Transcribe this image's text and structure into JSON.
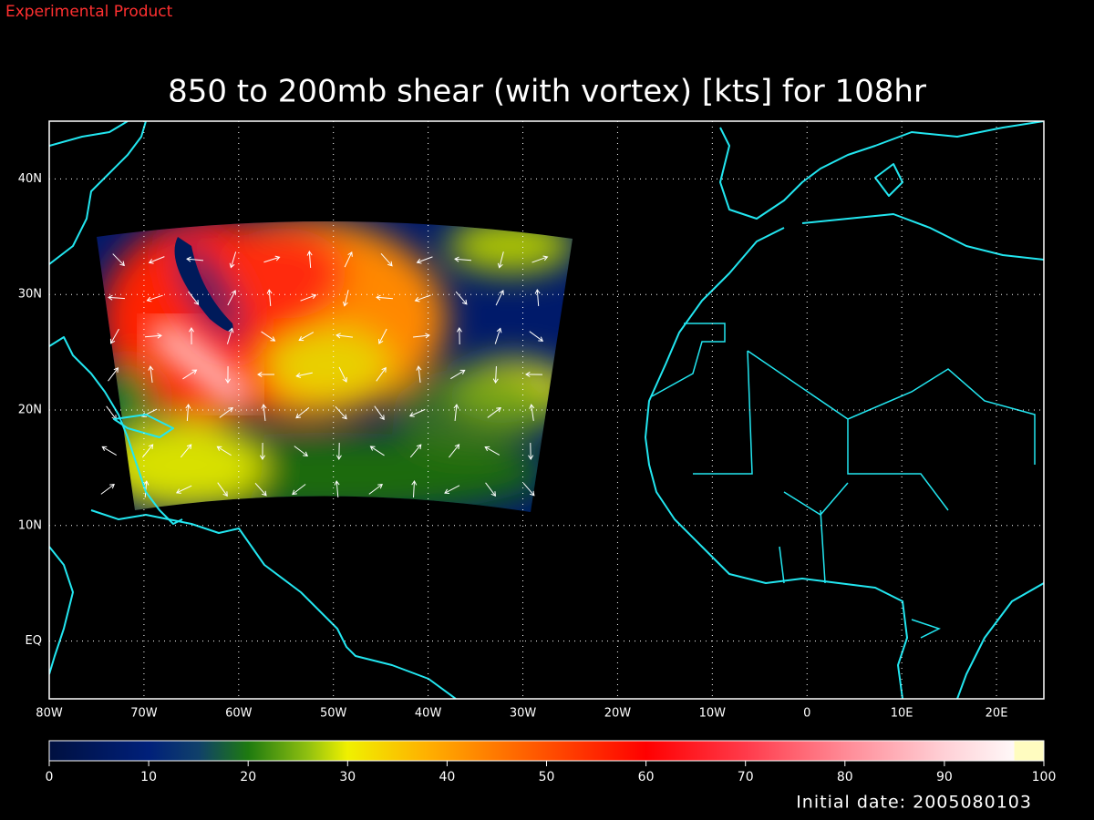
{
  "header": {
    "label": "Experimental Product"
  },
  "title": "850 to 200mb shear (with vortex) [kts] for 108hr",
  "map": {
    "lon_labels": [
      "80W",
      "70W",
      "60W",
      "50W",
      "40W",
      "30W",
      "20W",
      "10W",
      "0",
      "10E",
      "20E"
    ],
    "lat_labels": [
      "EQ",
      "10N",
      "20N",
      "30N",
      "40N"
    ]
  },
  "colorbar": {
    "ticks": [
      0,
      10,
      20,
      30,
      40,
      50,
      60,
      70,
      80,
      90,
      100
    ]
  },
  "footer": {
    "initial_date": "Initial date: 2005080103"
  }
}
